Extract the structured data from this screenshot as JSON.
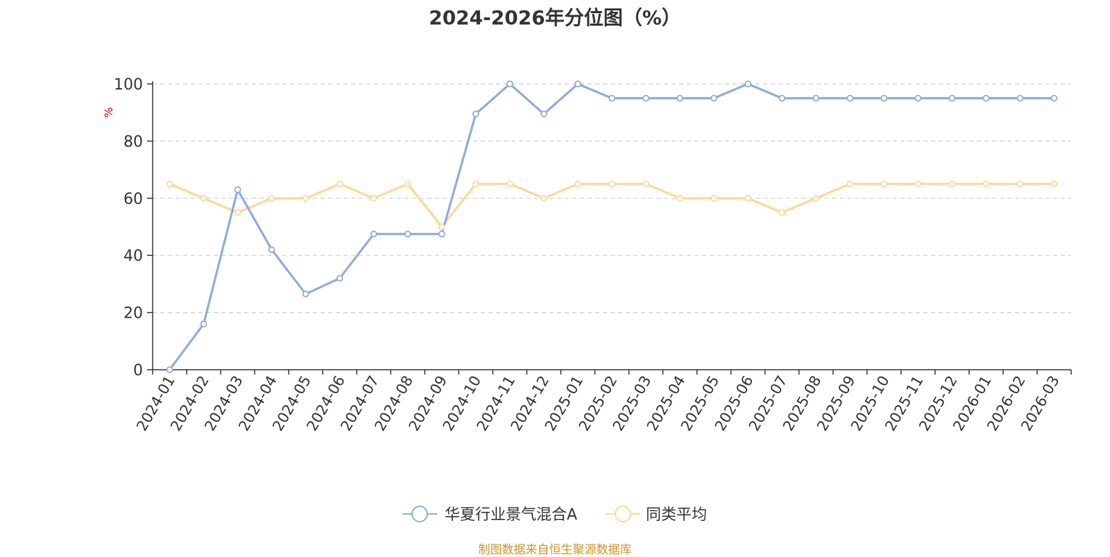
{
  "title": "2024-2026年分位图（%）",
  "footer": "制图数据来自恒生聚源数据库",
  "chart_data": {
    "type": "line",
    "title": "2024-2026年分位图（%）",
    "xlabel": "",
    "ylabel": "%",
    "ylim": [
      0,
      100
    ],
    "yticks": [
      0,
      20,
      40,
      60,
      80,
      100
    ],
    "grid": true,
    "legend_position": "bottom-center",
    "categories": [
      "2024-01",
      "2024-02",
      "2024-03",
      "2024-04",
      "2024-05",
      "2024-06",
      "2024-07",
      "2024-08",
      "2024-09",
      "2024-10",
      "2024-11",
      "2024-12",
      "2025-01",
      "2025-02",
      "2025-03",
      "2025-04",
      "2025-05",
      "2025-06",
      "2025-07",
      "2025-08",
      "2025-09",
      "2025-10",
      "2025-11",
      "2025-12",
      "2026-01",
      "2026-02",
      "2026-03"
    ],
    "series": [
      {
        "name": "华夏行业景气混合A",
        "color": "#8eadd9",
        "values": [
          0,
          16,
          63,
          42,
          26.5,
          32,
          47.5,
          47.5,
          47.5,
          89.5,
          100,
          89.5,
          100,
          95,
          95,
          95,
          95,
          100,
          95,
          95,
          95,
          95,
          95,
          95,
          95,
          95,
          95
        ]
      },
      {
        "name": "同类平均",
        "color": "#fcd898",
        "values": [
          65,
          60,
          55,
          60,
          60,
          65,
          60,
          65,
          50,
          65,
          65,
          60,
          65,
          65,
          65,
          60,
          60,
          60,
          55,
          60,
          65,
          65,
          65,
          65,
          65,
          65,
          65
        ]
      }
    ]
  },
  "colors": {
    "axis": "#333333",
    "grid": "#cccccc",
    "ylabel": "#ff0000",
    "footer": "#c9962b"
  }
}
